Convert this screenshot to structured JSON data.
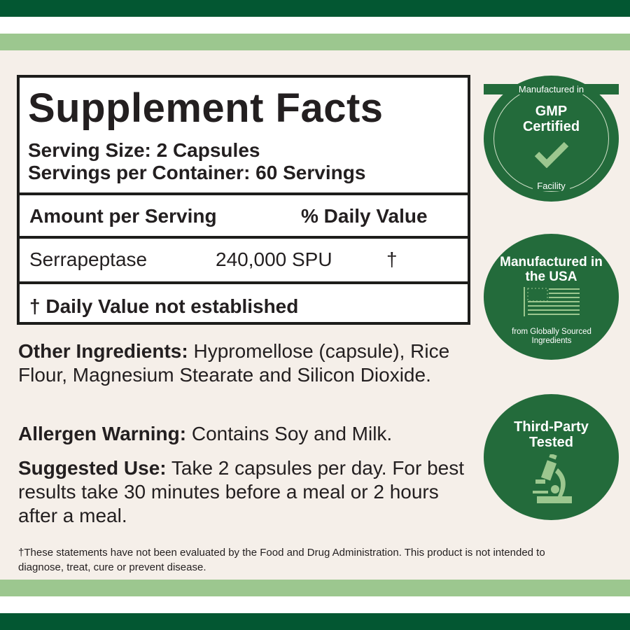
{
  "colors": {
    "dark_green": "#035732",
    "light_green": "#9cc78f",
    "badge_green": "#236b3b",
    "background": "#f5efe9"
  },
  "facts": {
    "title": "Supplement Facts",
    "serving_size": "Serving Size: 2 Capsules",
    "servings_per_container": "Servings per Container: 60 Servings",
    "header_amount": "Amount per Serving",
    "header_dv": "% Daily Value",
    "rows": [
      {
        "name": "Serrapeptase",
        "amount": "240,000 SPU",
        "dv": "†"
      }
    ],
    "footnote": "† Daily Value not established"
  },
  "other_ingredients": {
    "label": "Other Ingredients:",
    "text": " Hypromellose (capsule), Rice Flour, Magnesium Stearate and Silicon Dioxide."
  },
  "allergen": {
    "label": "Allergen Warning:",
    "text": " Contains Soy and Milk."
  },
  "suggested_use": {
    "label": "Suggested Use:",
    "text": " Take 2 capsules per day. For best results take 30 minutes before a meal or 2 hours after a meal."
  },
  "disclaimer": "†These statements have not been evaluated by the Food and Drug Administration. This product is not intended to diagnose, treat, cure or prevent disease.",
  "badges": [
    {
      "top": "Manufactured in",
      "title": "GMP Certified",
      "bottom": "Facility",
      "icon": "checkmark-icon"
    },
    {
      "title": "Manufactured in the USA",
      "subtitle": "from Globally Sourced Ingredients",
      "icon": "us-flag-icon"
    },
    {
      "title": "Third-Party Tested",
      "icon": "microscope-icon"
    }
  ]
}
